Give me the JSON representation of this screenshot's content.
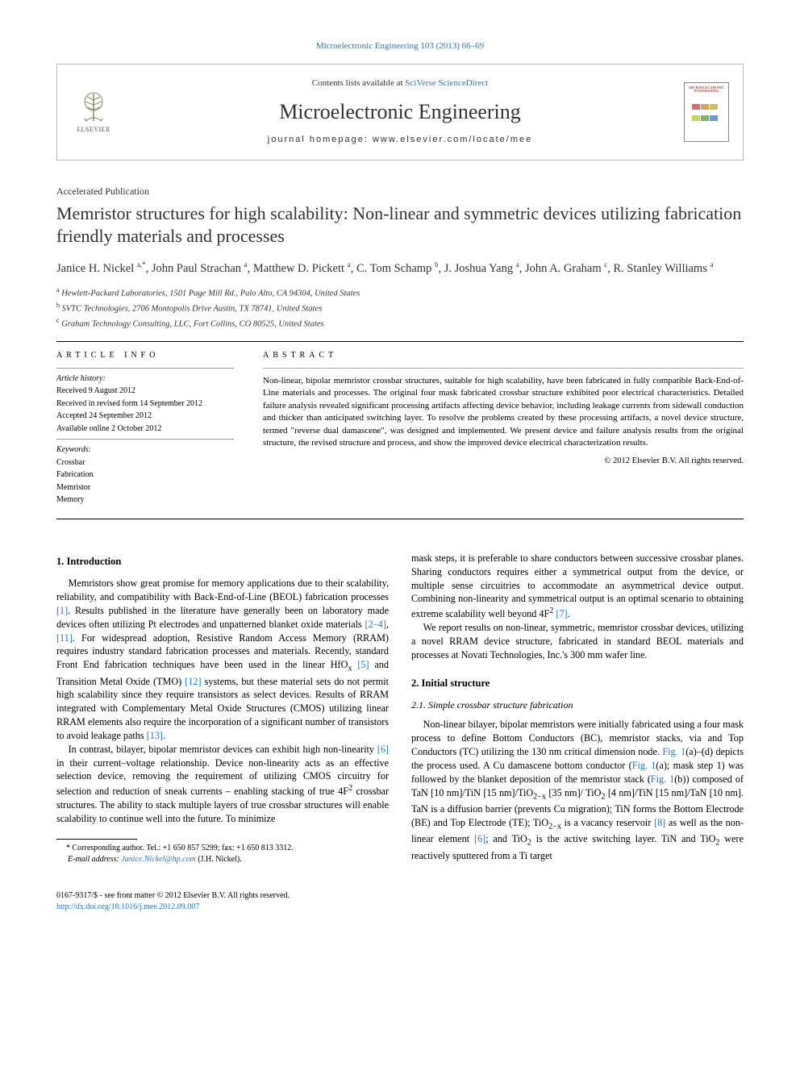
{
  "colors": {
    "link": "#2976c6",
    "text": "#000000",
    "muted": "#333333",
    "rule": "#000000",
    "box_border": "#b8b8b8",
    "cover_title": "#c93a1f",
    "cover_swatches": [
      "#d96a6a",
      "#d6a45a",
      "#d9bb5a",
      "#c9d95a",
      "#7fb56a",
      "#6a9bd9"
    ]
  },
  "top_citation": "Microelectronic Engineering 103 (2013) 66–69",
  "header": {
    "publisher_label": "ELSEVIER",
    "contents_prefix": "Contents lists available at ",
    "contents_link": "SciVerse ScienceDirect",
    "journal_name": "Microelectronic Engineering",
    "homepage_label": "journal homepage: www.elsevier.com/locate/mee",
    "cover_text": "MICROELECTRONIC ENGINEERING"
  },
  "kicker": "Accelerated Publication",
  "title": "Memristor structures for high scalability: Non-linear and symmetric devices utilizing fabrication friendly materials and processes",
  "authors_html": "Janice H. Nickel <sup>a,*</sup>, John Paul Strachan <sup>a</sup>, Matthew D. Pickett <sup>a</sup>, C. Tom Schamp <sup>b</sup>, J. Joshua Yang <sup>a</sup>, John A. Graham <sup>c</sup>, R. Stanley Williams <sup>a</sup>",
  "affiliations": [
    "a Hewlett-Packard Laboratories, 1501 Page Mill Rd., Palo Alto, CA 94304, United States",
    "b SVTC Technologies, 2706 Montopolis Drive Austin, TX 78741, United States",
    "c Graham Technology Consulting, LLC, Fort Collins, CO 80525, United States"
  ],
  "article_info": {
    "heading": "ARTICLE INFO",
    "history_label": "Article history:",
    "history": [
      "Received 9 August 2012",
      "Received in revised form 14 September 2012",
      "Accepted 24 September 2012",
      "Available online 2 October 2012"
    ],
    "keywords_label": "Keywords:",
    "keywords": [
      "Crossbar",
      "Fabrication",
      "Memristor",
      "Memory"
    ]
  },
  "abstract": {
    "heading": "ABSTRACT",
    "text": "Non-linear, bipolar memristor crossbar structures, suitable for high scalability, have been fabricated in fully compatible Back-End-of-Line materials and processes. The original four mask fabricated crossbar structure exhibited poor electrical characteristics. Detailed failure analysis revealed significant processing artifacts affecting device behavior, including leakage currents from sidewall conduction and thicker than anticipated switching layer. To resolve the problems created by these processing artifacts, a novel device structure, termed \"reverse dual damascene\", was designed and implemented. We present device and failure analysis results from the original structure, the revised structure and process, and show the improved device electrical characterization results.",
    "copyright": "© 2012 Elsevier B.V. All rights reserved."
  },
  "body": {
    "left": {
      "h_intro": "1. Introduction",
      "p1": "Memristors show great promise for memory applications due to their scalability, reliability, and compatibility with Back-End-of-Line (BEOL) fabrication processes [1]. Results published in the literature have generally been on laboratory made devices often utilizing Pt electrodes and unpatterned blanket oxide materials [2–4], [11]. For widespread adoption, Resistive Random Access Memory (RRAM) requires industry standard fabrication processes and materials. Recently, standard Front End fabrication techniques have been used in the linear HfOx [5] and Transition Metal Oxide (TMO) [12] systems, but these material sets do not permit high scalability since they require transistors as select devices. Results of RRAM integrated with Complementary Metal Oxide Structures (CMOS) utilizing linear RRAM elements also require the incorporation of a significant number of transistors to avoid leakage paths [13].",
      "p2": "In contrast, bilayer, bipolar memristor devices can exhibit high non-linearity [6] in their current–voltage relationship. Device non-linearity acts as an effective selection device, removing the requirement of utilizing CMOS circuitry for selection and reduction of sneak currents – enabling stacking of true 4F² crossbar structures. The ability to stack multiple layers of true crossbar structures will enable scalability to continue well into the future. To minimize",
      "footnote_star": "* Corresponding author. Tel.: +1 650 857 5299; fax: +1 650 813 3312.",
      "footnote_email_label": "E-mail address: ",
      "footnote_email": "Janice.Nickel@hp.com",
      "footnote_email_tail": " (J.H. Nickel)."
    },
    "right": {
      "p1": "mask steps, it is preferable to share conductors between successive crossbar planes. Sharing conductors requires either a symmetrical output from the device, or multiple sense circuitries to accommodate an asymmetrical device output. Combining non-linearity and symmetrical output is an optimal scenario to obtaining extreme scalability well beyond 4F² [7].",
      "p2": "We report results on non-linear, symmetric, memristor crossbar devices, utilizing a novel RRAM device structure, fabricated in standard BEOL materials and processes at Novati Technologies, Inc.'s 300 mm wafer line.",
      "h2": "2. Initial structure",
      "h21": "2.1. Simple crossbar structure fabrication",
      "p3": "Non-linear bilayer, bipolar memristors were initially fabricated using a four mask process to define Bottom Conductors (BC), memristor stacks, via and Top Conductors (TC) utilizing the 130 nm critical dimension node. Fig. 1(a)–(d) depicts the process used. A Cu damascene bottom conductor (Fig. 1(a); mask step 1) was followed by the blanket deposition of the memristor stack (Fig. 1(b)) composed of TaN [10 nm]/TiN [15 nm]/TiO2−x [35 nm]/ TiO2 [4 nm]/TiN [15 nm]/TaN [10 nm]. TaN is a diffusion barrier (prevents Cu migration); TiN forms the Bottom Electrode (BE) and Top Electrode (TE); TiO2−x is a vacancy reservoir [8] as well as the non-linear element [6]; and TiO2 is the active switching layer. TiN and TiO2 were reactively sputtered from a Ti target"
    }
  },
  "bottom": {
    "line1": "0167-9317/$ - see front matter © 2012 Elsevier B.V. All rights reserved.",
    "doi": "http://dx.doi.org/10.1016/j.mee.2012.09.007"
  }
}
